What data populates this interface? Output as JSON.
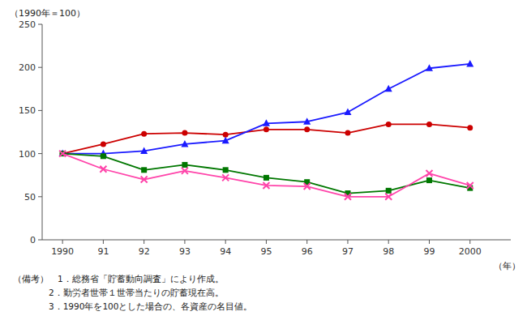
{
  "chart_data": {
    "type": "line",
    "x": [
      1990,
      1991,
      1992,
      1993,
      1994,
      1995,
      1996,
      1997,
      1998,
      1999,
      2000
    ],
    "xlim": [
      1989.5,
      2001.0
    ],
    "xticks": [
      1990,
      {
        "value": 1991,
        "label": "91"
      },
      {
        "value": 1992,
        "label": "92"
      },
      {
        "value": 1993,
        "label": "93"
      },
      {
        "value": 1994,
        "label": "94"
      },
      {
        "value": 1995,
        "label": "95"
      },
      {
        "value": 1996,
        "label": "96"
      },
      {
        "value": 1997,
        "label": "97"
      },
      {
        "value": 1998,
        "label": "98"
      },
      {
        "value": 1999,
        "label": "99"
      },
      2000
    ],
    "ylim": [
      0,
      250
    ],
    "yticks": [
      0,
      50,
      100,
      150,
      200,
      250
    ],
    "y_label": "（1990年＝100）",
    "x_label": "（年）",
    "grid": false,
    "series": [
      {
        "color": "#cc0000",
        "marker": "circle",
        "line_style": "solid",
        "values": [
          100,
          111,
          123,
          124,
          122,
          128,
          128,
          124,
          134,
          134,
          130
        ]
      },
      {
        "color": "#1a1aff",
        "marker": "triangle",
        "line_style": "solid",
        "values": [
          100,
          100,
          103,
          111,
          115,
          135,
          137,
          148,
          175,
          199,
          204
        ]
      },
      {
        "color": "#007700",
        "marker": "square",
        "line_style": "solid",
        "values": [
          100,
          97,
          81,
          87,
          81,
          72,
          67,
          54,
          57,
          69,
          60
        ]
      },
      {
        "color": "#ff44aa",
        "marker": "x",
        "line_style": "solid",
        "values": [
          100,
          82,
          70,
          80,
          72,
          63,
          62,
          50,
          50,
          77,
          63
        ]
      }
    ],
    "notes": [
      "（備考）　1．総務省「貯蓄動向調査」により作成。",
      "　　　　2．勤労者世帯１世帯当たりの貯蓄現在高。",
      "　　　　3．1990年を100とした場合の、各資産の名目値。"
    ]
  }
}
